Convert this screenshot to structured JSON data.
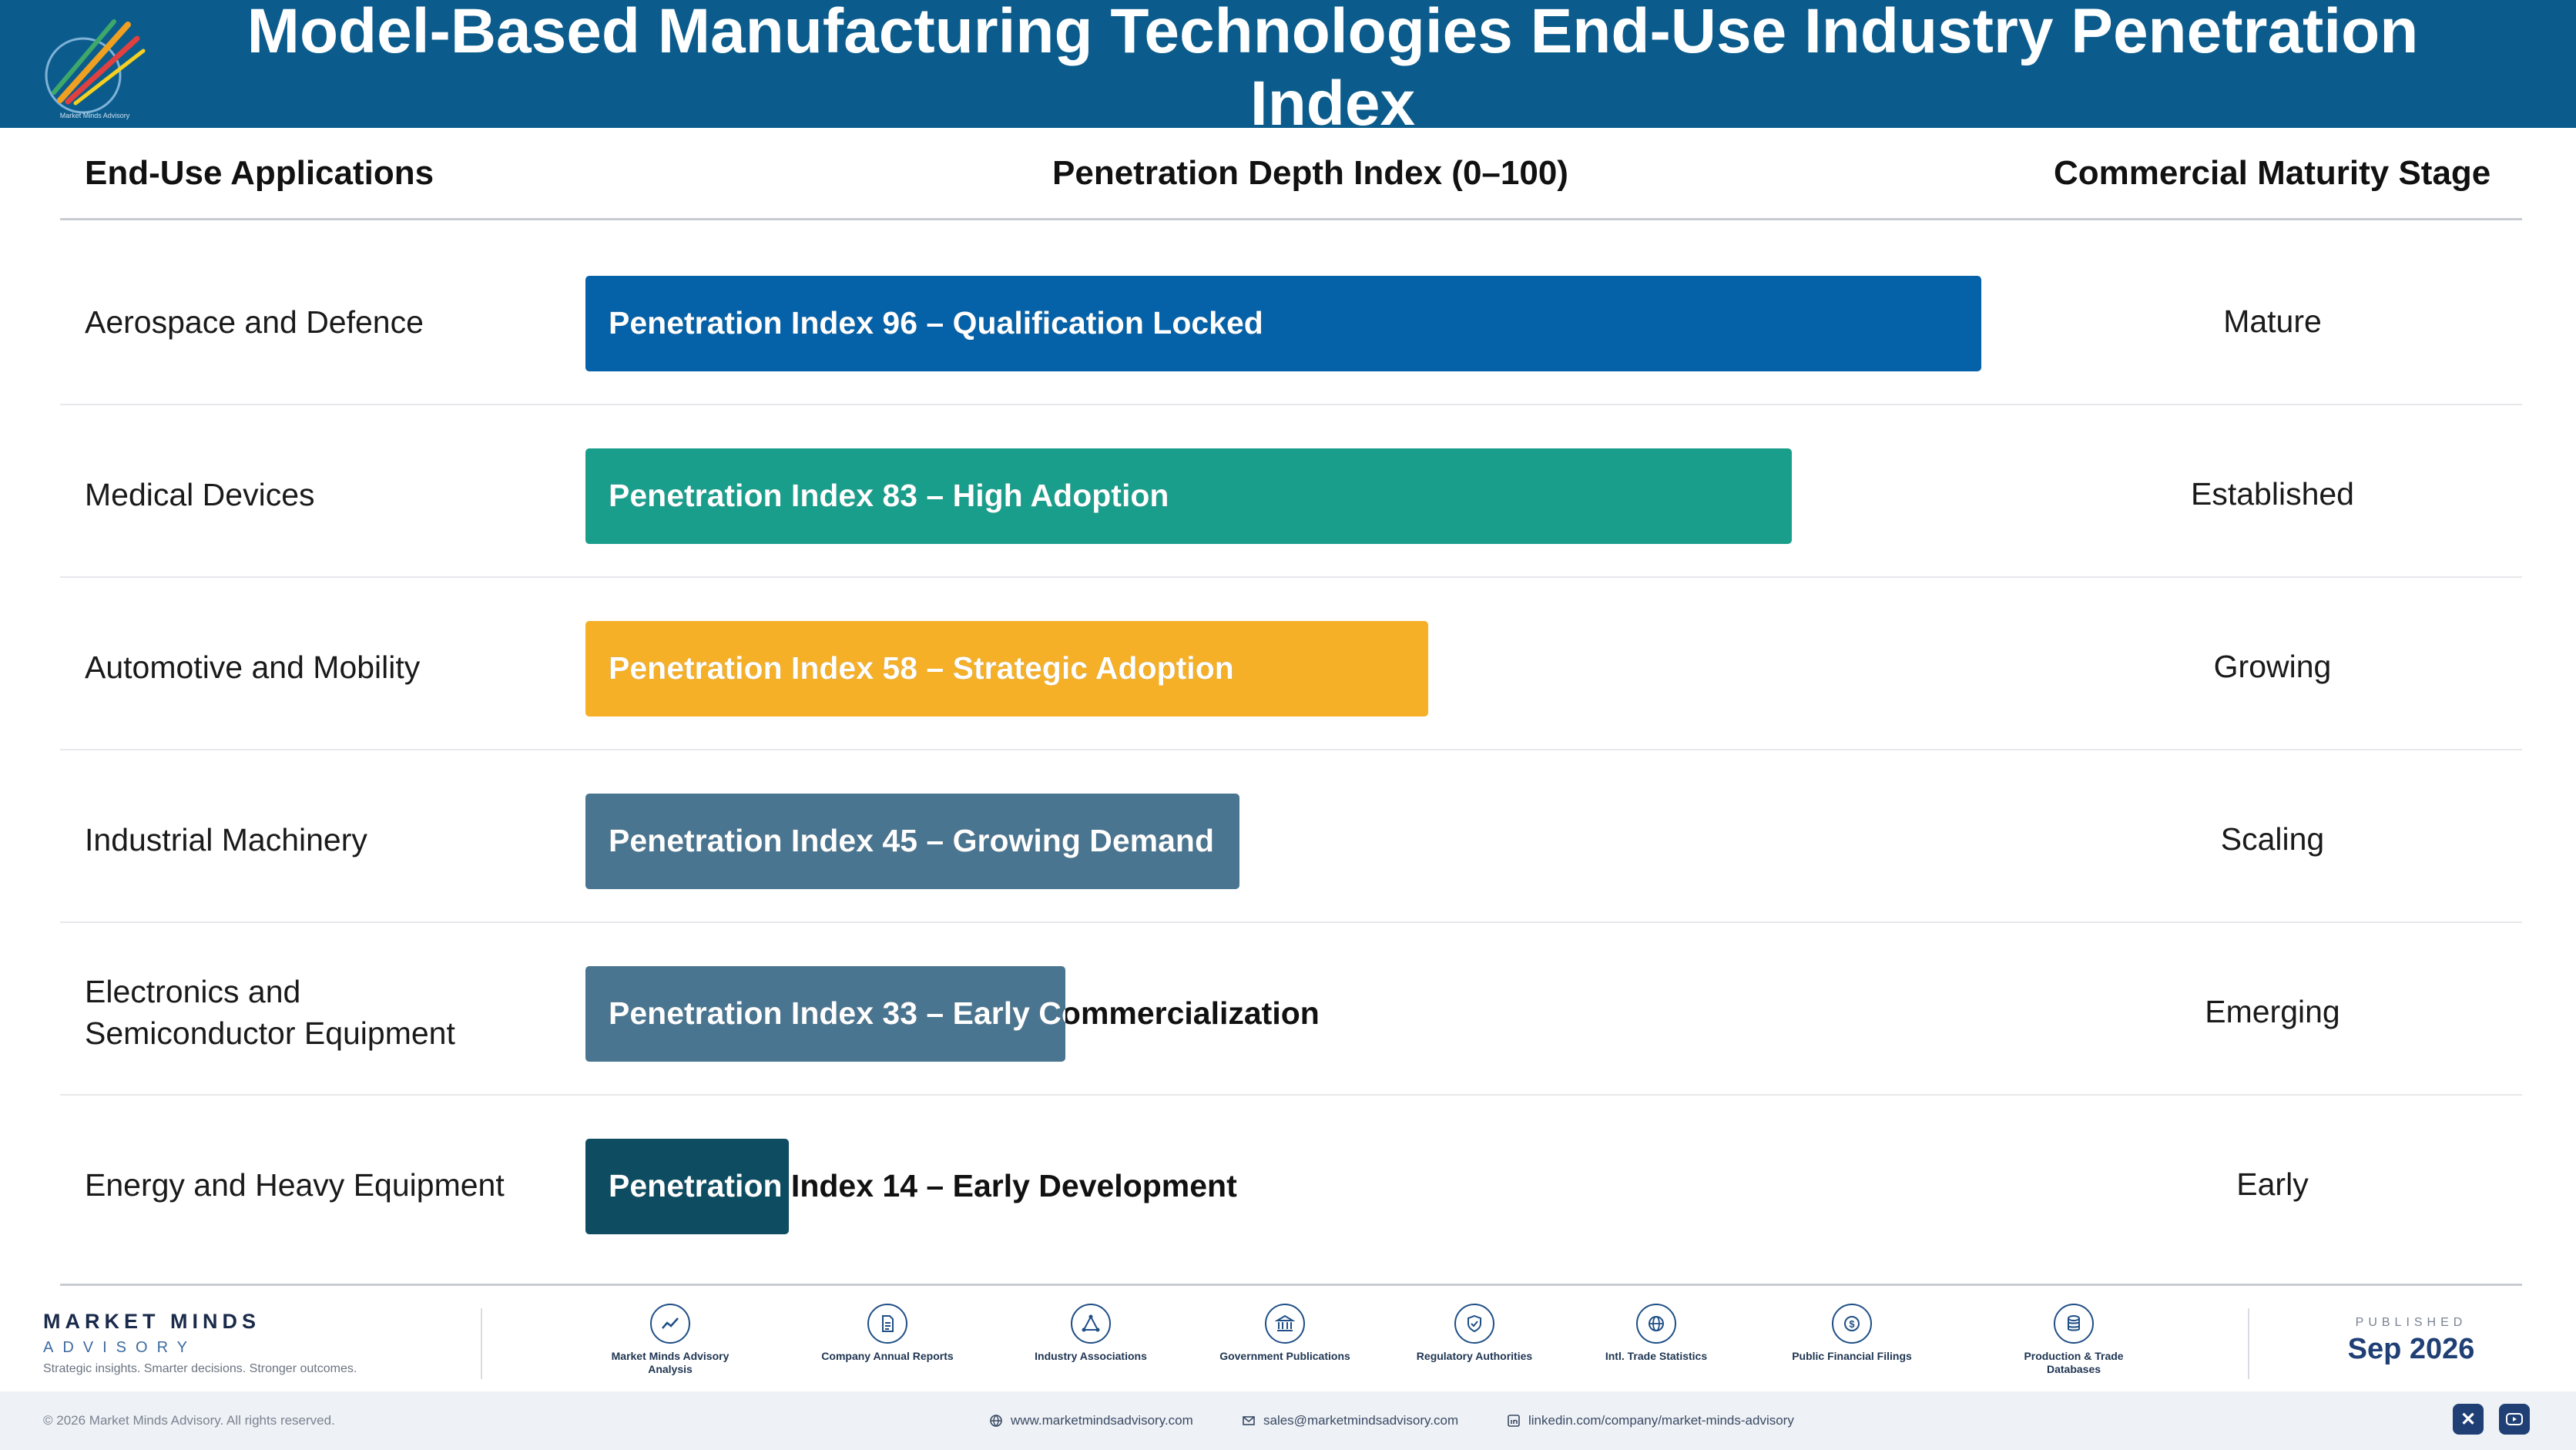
{
  "header": {
    "title": "Model-Based Manufacturing Technologies End-Use Industry Penetration Index",
    "logo_tagline": "Market Minds Advisory",
    "colors": {
      "header_bg": "#0b5c8c",
      "title_text": "#ffffff"
    }
  },
  "columns": {
    "applications": "End-Use Applications",
    "index": "Penetration Depth Index (0–100)",
    "stage": "Commercial Maturity Stage"
  },
  "chart_data": {
    "type": "bar",
    "orientation": "horizontal",
    "xlim": [
      0,
      100
    ],
    "categories": [
      "Aerospace and Defence",
      "Medical Devices",
      "Automotive and Mobility",
      "Industrial Machinery",
      "Electronics and Semiconductor Equipment",
      "Energy and Heavy Equipment"
    ],
    "values": [
      96,
      83,
      58,
      45,
      33,
      14
    ],
    "bar_labels": [
      "Penetration Index 96 – Qualification Locked",
      "Penetration Index 83 – High Adoption",
      "Penetration Index 58 – Strategic Adoption",
      "Penetration Index 45 – Growing Demand",
      "Penetration Index 33 – Early Commercialization",
      "Penetration Index 14 – Early Development"
    ],
    "stages": [
      "Mature",
      "Established",
      "Growing",
      "Scaling",
      "Emerging",
      "Early"
    ],
    "colors": [
      "#0562a8",
      "#1a9e8c",
      "#f5b027",
      "#4a7590",
      "#4a7590",
      "#0e4d61"
    ],
    "grid": false,
    "legend": "none"
  },
  "footer": {
    "brand": "MARKET MINDS",
    "brand_sub": "ADVISORY",
    "tagline": "Strategic insights. Smarter decisions. Stronger outcomes.",
    "sources": [
      {
        "label": "Market Minds Advisory Analysis",
        "icon": "trend-line-icon"
      },
      {
        "label": "Company Annual Reports",
        "icon": "document-icon"
      },
      {
        "label": "Industry Associations",
        "icon": "network-icon"
      },
      {
        "label": "Government Publications",
        "icon": "government-building-icon"
      },
      {
        "label": "Regulatory Authorities",
        "icon": "shield-check-icon"
      },
      {
        "label": "Intl. Trade Statistics",
        "icon": "globe-icon"
      },
      {
        "label": "Public Financial Filings",
        "icon": "dollar-icon"
      },
      {
        "label": "Production & Trade Databases",
        "icon": "database-icon"
      }
    ],
    "published_label": "PUBLISHED",
    "published_date": "Sep 2026",
    "copyright": "© 2026 Market Minds Advisory. All rights reserved.",
    "website": "www.marketmindsadvisory.com",
    "email": "sales@marketmindsadvisory.com",
    "linkedin": "linkedin.com/company/market-minds-advisory"
  }
}
